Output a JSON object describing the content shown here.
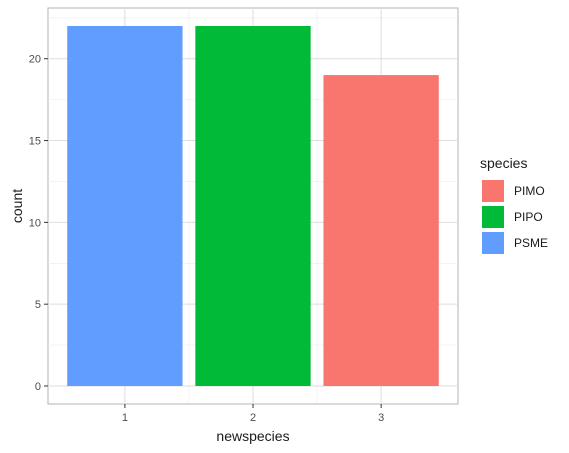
{
  "chart_data": {
    "type": "bar",
    "categories": [
      "1",
      "2",
      "3"
    ],
    "values": [
      22,
      22,
      19
    ],
    "bar_species": [
      "PSME",
      "PIPO",
      "PIMO"
    ],
    "xlabel": "newspecies",
    "ylabel": "count",
    "ylim": [
      -1.1,
      23.1
    ],
    "yticks": [
      0,
      5,
      10,
      15,
      20
    ],
    "grid": true,
    "legend": {
      "title": "species",
      "placement": "right",
      "entries": [
        {
          "label": "PIMO",
          "color": "#F8766D"
        },
        {
          "label": "PIPO",
          "color": "#00BA38"
        },
        {
          "label": "PSME",
          "color": "#619CFF"
        }
      ]
    }
  }
}
